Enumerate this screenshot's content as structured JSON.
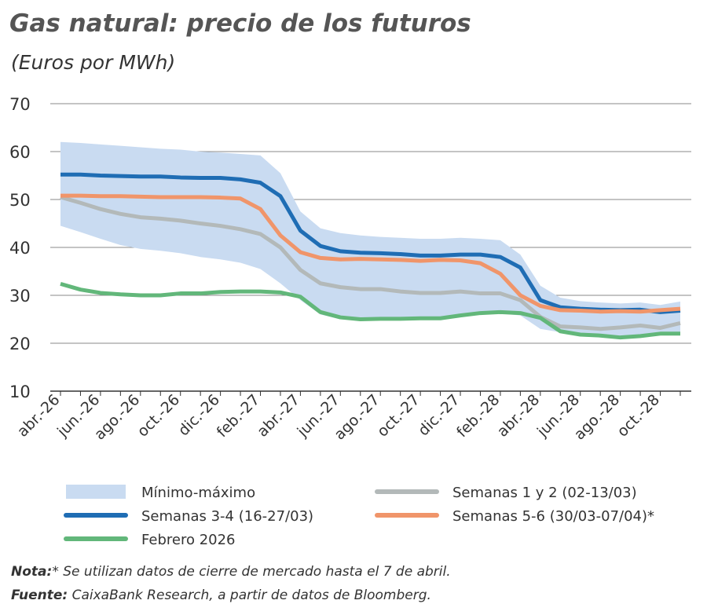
{
  "chart_data": {
    "type": "line",
    "title": "Gas natural: precio de los futuros",
    "subtitle": "(Euros por MWh)",
    "categories": [
      "abr.-26",
      null,
      "jun.-26",
      null,
      "ago.-26",
      null,
      "oct.-26",
      null,
      "dic.-26",
      null,
      "feb.-27",
      null,
      "abr.-27",
      null,
      "jun.-27",
      null,
      "ago.-27",
      null,
      "oct.-27",
      null,
      "dic.-27",
      null,
      "feb.-28",
      null,
      "abr.-28",
      null,
      "jun.-28",
      null,
      "ago.-28",
      null,
      "oct.-28",
      null
    ],
    "ylim": [
      10,
      70
    ],
    "yticks": [
      10,
      20,
      30,
      40,
      50,
      60,
      70
    ],
    "grid": true,
    "band": {
      "name": "Mínimo-máximo",
      "color": "#c9dbf1",
      "low": [
        44.5,
        43.2,
        41.8,
        40.5,
        39.7,
        39.3,
        38.8,
        38.0,
        37.5,
        36.8,
        35.5,
        32.5,
        29.0,
        26.0,
        25.0,
        24.8,
        24.9,
        24.9,
        25.0,
        25.0,
        25.5,
        26.0,
        26.2,
        25.8,
        23.0,
        22.3,
        21.5,
        21.3,
        21.0,
        21.3,
        21.7,
        21.8
      ],
      "high": [
        62.0,
        61.8,
        61.5,
        61.2,
        60.9,
        60.6,
        60.4,
        60.0,
        59.8,
        59.5,
        59.2,
        55.5,
        47.5,
        44.0,
        43.0,
        42.5,
        42.2,
        42.0,
        41.8,
        41.8,
        42.0,
        41.8,
        41.5,
        38.5,
        32.0,
        29.5,
        28.8,
        28.5,
        28.3,
        28.5,
        28.0,
        28.7
      ]
    },
    "series": [
      {
        "name": "Semanas 1 y 2 (02-13/03)",
        "color": "#b3b9b9",
        "values": [
          50.5,
          49.3,
          48.0,
          47.0,
          46.3,
          46.0,
          45.6,
          45.0,
          44.5,
          43.8,
          42.8,
          40.0,
          35.3,
          32.5,
          31.7,
          31.3,
          31.3,
          30.8,
          30.5,
          30.5,
          30.8,
          30.4,
          30.4,
          29.0,
          25.5,
          23.5,
          23.3,
          23.0,
          23.3,
          23.7,
          23.2,
          24.2
        ]
      },
      {
        "name": "Semanas 3-4 (16-27/03)",
        "color": "#1f6db4",
        "values": [
          55.2,
          55.2,
          55.0,
          54.9,
          54.8,
          54.8,
          54.6,
          54.5,
          54.5,
          54.2,
          53.5,
          50.7,
          43.5,
          40.3,
          39.2,
          38.9,
          38.8,
          38.6,
          38.3,
          38.3,
          38.5,
          38.5,
          38.0,
          35.8,
          29.0,
          27.5,
          27.2,
          27.0,
          26.9,
          27.0,
          26.5,
          26.8
        ]
      },
      {
        "name": "Semanas 5-6 (30/03-07/04)*",
        "color": "#f0956a",
        "values": [
          50.8,
          50.8,
          50.7,
          50.7,
          50.6,
          50.5,
          50.5,
          50.5,
          50.4,
          50.2,
          48.0,
          42.5,
          39.0,
          37.8,
          37.5,
          37.6,
          37.5,
          37.4,
          37.2,
          37.4,
          37.3,
          36.7,
          34.5,
          30.0,
          27.8,
          26.9,
          26.8,
          26.6,
          26.7,
          26.6,
          26.9,
          27.2
        ]
      },
      {
        "name": "Febrero 2026",
        "color": "#62b77a",
        "values": [
          32.4,
          31.2,
          30.5,
          30.2,
          30.0,
          30.0,
          30.4,
          30.4,
          30.7,
          30.8,
          30.8,
          30.6,
          29.7,
          26.5,
          25.4,
          25.0,
          25.1,
          25.1,
          25.2,
          25.2,
          25.8,
          26.3,
          26.5,
          26.3,
          25.3,
          22.5,
          21.8,
          21.6,
          21.2,
          21.5,
          22.0,
          22.0
        ]
      }
    ],
    "note_label": "Nota:",
    "note": "* Se utilizan datos de cierre de mercado hasta el 7 de abril.",
    "source_label": "Fuente:",
    "source": " CaixaBank Research, a partir de datos de Bloomberg."
  }
}
